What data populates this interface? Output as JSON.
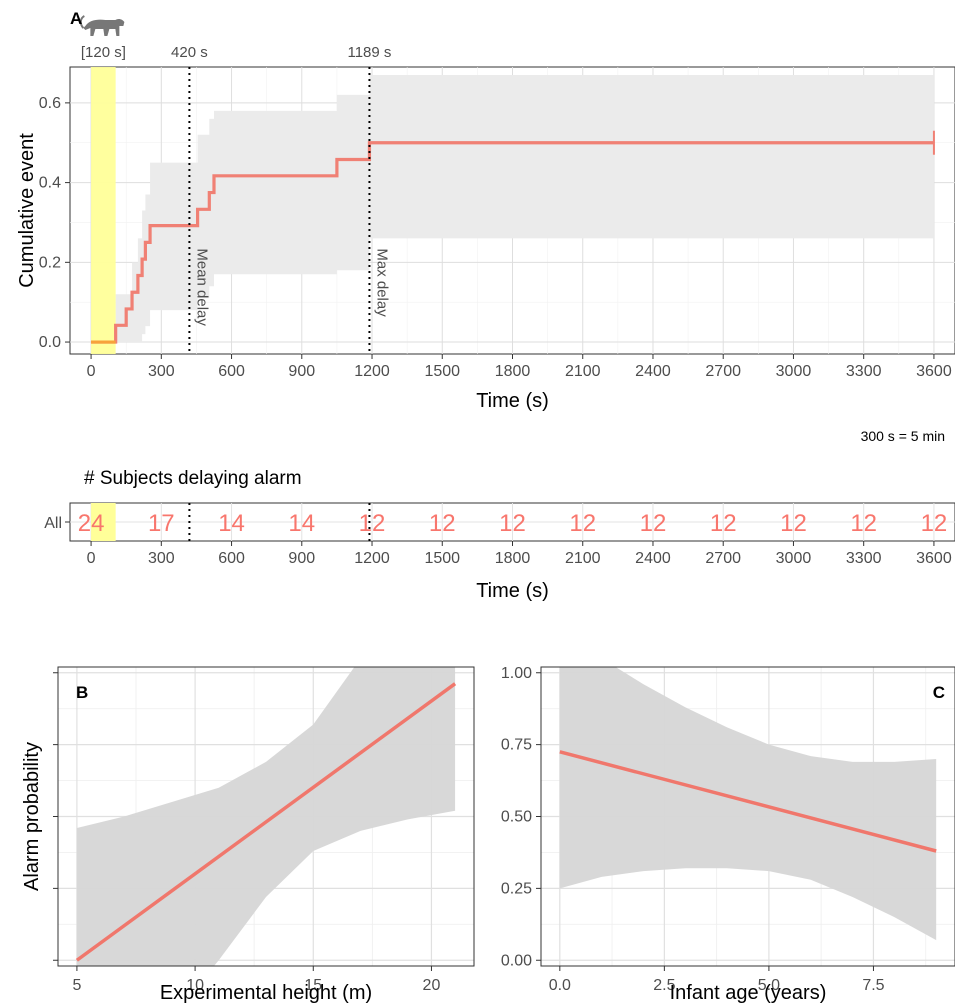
{
  "chart_data": [
    {
      "id": "A",
      "type": "line",
      "panel_label": "A",
      "xlabel": "Time (s)",
      "ylabel": "Cumulative event",
      "xlim": [
        -90,
        3690
      ],
      "ylim": [
        -0.03,
        0.69
      ],
      "x_ticks": [
        0,
        300,
        600,
        900,
        1200,
        1500,
        1800,
        2100,
        2400,
        2700,
        3000,
        3300,
        3600
      ],
      "y_ticks": [
        0.0,
        0.2,
        0.4,
        0.6
      ],
      "y_tick_labels": [
        "0.0",
        "0.2",
        "0.4",
        "0.6"
      ],
      "grid": true,
      "colors": {
        "line": "#f08074",
        "highlight_line": "#f7a23b",
        "ribbon": "#ebebeb",
        "highlight_band": "#ffff99"
      },
      "highlight_band": {
        "x": [
          0,
          105
        ],
        "label": "[120 s]"
      },
      "icon": "tiger-icon",
      "vlines": [
        {
          "x": 420,
          "top_label": "420 s",
          "side_label": "Mean delay"
        },
        {
          "x": 1189,
          "top_label": "1189 s",
          "side_label": "Max delay"
        }
      ],
      "step": {
        "x": [
          0,
          105,
          105,
          150,
          150,
          175,
          175,
          200,
          200,
          218,
          218,
          232,
          232,
          252,
          252,
          455,
          455,
          505,
          505,
          525,
          525,
          1050,
          1050,
          1189,
          1189,
          3600
        ],
        "y": [
          0.0,
          0.0,
          0.042,
          0.042,
          0.083,
          0.083,
          0.125,
          0.125,
          0.167,
          0.167,
          0.208,
          0.208,
          0.25,
          0.25,
          0.292,
          0.292,
          0.333,
          0.333,
          0.375,
          0.375,
          0.417,
          0.417,
          0.458,
          0.458,
          0.5,
          0.5
        ]
      },
      "ribbon": {
        "x": [
          0,
          105,
          150,
          175,
          200,
          218,
          232,
          252,
          420,
          455,
          505,
          525,
          1050,
          1189,
          3600
        ],
        "lower": [
          0.0,
          0.0,
          0.0,
          0.0,
          0.0,
          0.02,
          0.04,
          0.08,
          0.08,
          0.11,
          0.14,
          0.17,
          0.18,
          0.26,
          0.26
        ],
        "upper": [
          0.0,
          0.12,
          0.12,
          0.2,
          0.26,
          0.33,
          0.37,
          0.45,
          0.45,
          0.52,
          0.56,
          0.58,
          0.62,
          0.67,
          0.67
        ]
      },
      "note": "300 s = 5 min"
    },
    {
      "id": "risk",
      "type": "table",
      "title": "# Subjects delaying alarm",
      "strata": "All",
      "xlabel": "Time (s)",
      "xlim": [
        -90,
        3690
      ],
      "x": [
        0,
        300,
        600,
        900,
        1200,
        1500,
        1800,
        2100,
        2400,
        2700,
        3000,
        3300,
        3600
      ],
      "x_ticks": [
        0,
        300,
        600,
        900,
        1200,
        1500,
        1800,
        2100,
        2400,
        2700,
        3000,
        3300,
        3600
      ],
      "values": [
        24,
        17,
        14,
        14,
        12,
        12,
        12,
        12,
        12,
        12,
        12,
        12,
        12
      ],
      "vlines": [
        420,
        1189
      ],
      "highlight_band": [
        0,
        105
      ],
      "color": "#f8766d"
    },
    {
      "id": "B",
      "type": "line",
      "panel_label": "B",
      "xlabel": "Experimental height (m)",
      "ylabel": "Alarm probability",
      "xlim": [
        4.2,
        21.8
      ],
      "ylim": [
        -0.02,
        1.02
      ],
      "x_ticks": [
        5,
        10,
        15,
        20
      ],
      "y_ticks": [
        0.0,
        0.25,
        0.5,
        0.75,
        1.0
      ],
      "grid": true,
      "line": {
        "x": [
          5,
          21
        ],
        "y": [
          0.0,
          0.962
        ]
      },
      "ribbon": {
        "x": [
          5,
          7,
          9,
          11,
          13,
          15,
          17,
          19,
          21
        ],
        "lower": [
          -0.2,
          -0.2,
          -0.2,
          0.0,
          0.22,
          0.38,
          0.45,
          0.49,
          0.52
        ],
        "upper": [
          0.46,
          0.5,
          0.55,
          0.6,
          0.69,
          0.82,
          1.05,
          1.05,
          1.05
        ]
      },
      "colors": {
        "line": "#f0776c",
        "ribbon": "#d6d6d6"
      }
    },
    {
      "id": "C",
      "type": "line",
      "panel_label": "C",
      "xlabel": "Infant age (years)",
      "ylabel": "",
      "xlim": [
        -0.45,
        9.45
      ],
      "ylim": [
        -0.02,
        1.02
      ],
      "x_ticks": [
        0.0,
        2.5,
        5.0,
        7.5
      ],
      "x_tick_labels": [
        "0.0",
        "2.5",
        "5.0",
        "7.5"
      ],
      "y_ticks": [
        0.0,
        0.25,
        0.5,
        0.75,
        1.0
      ],
      "y_tick_labels": [
        "0.00",
        "0.25",
        "0.50",
        "0.75",
        "1.00"
      ],
      "grid": true,
      "line": {
        "x": [
          0,
          9
        ],
        "y": [
          0.725,
          0.38
        ]
      },
      "ribbon": {
        "x": [
          0,
          1,
          2,
          3,
          4,
          5,
          6,
          7,
          8,
          9
        ],
        "lower": [
          0.25,
          0.29,
          0.31,
          0.32,
          0.32,
          0.31,
          0.28,
          0.22,
          0.15,
          0.07
        ],
        "upper": [
          1.05,
          1.05,
          0.96,
          0.88,
          0.81,
          0.75,
          0.71,
          0.69,
          0.69,
          0.7
        ]
      },
      "colors": {
        "line": "#f0776c",
        "ribbon": "#d6d6d6"
      }
    }
  ]
}
